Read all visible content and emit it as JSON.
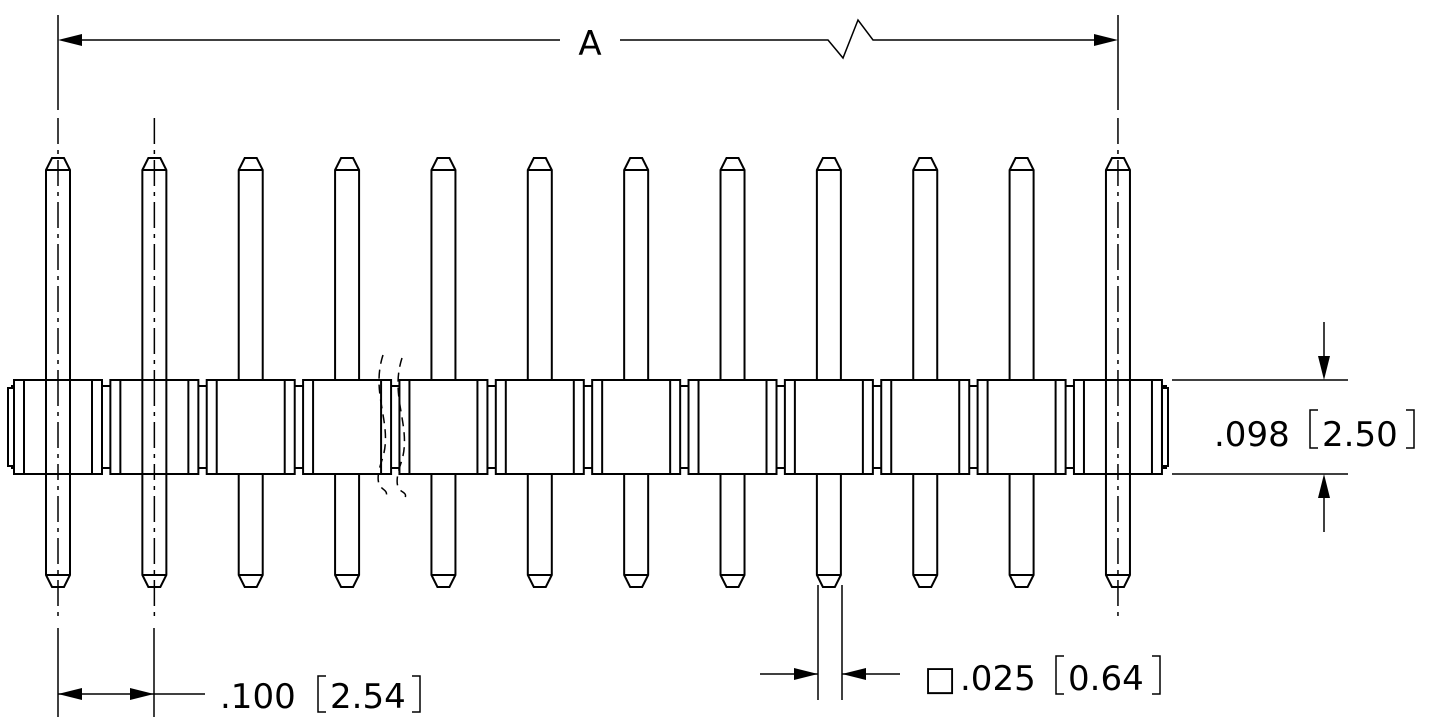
{
  "drawing": {
    "pin_count": 12,
    "dimensions": {
      "length_label": "A",
      "pitch_imperial": ".100",
      "pitch_metric": "2.54",
      "height_imperial": ".098",
      "height_metric": "2.50",
      "pin_imperial": ".025",
      "pin_metric": "0.64",
      "pin_square_symbol": "□"
    }
  }
}
